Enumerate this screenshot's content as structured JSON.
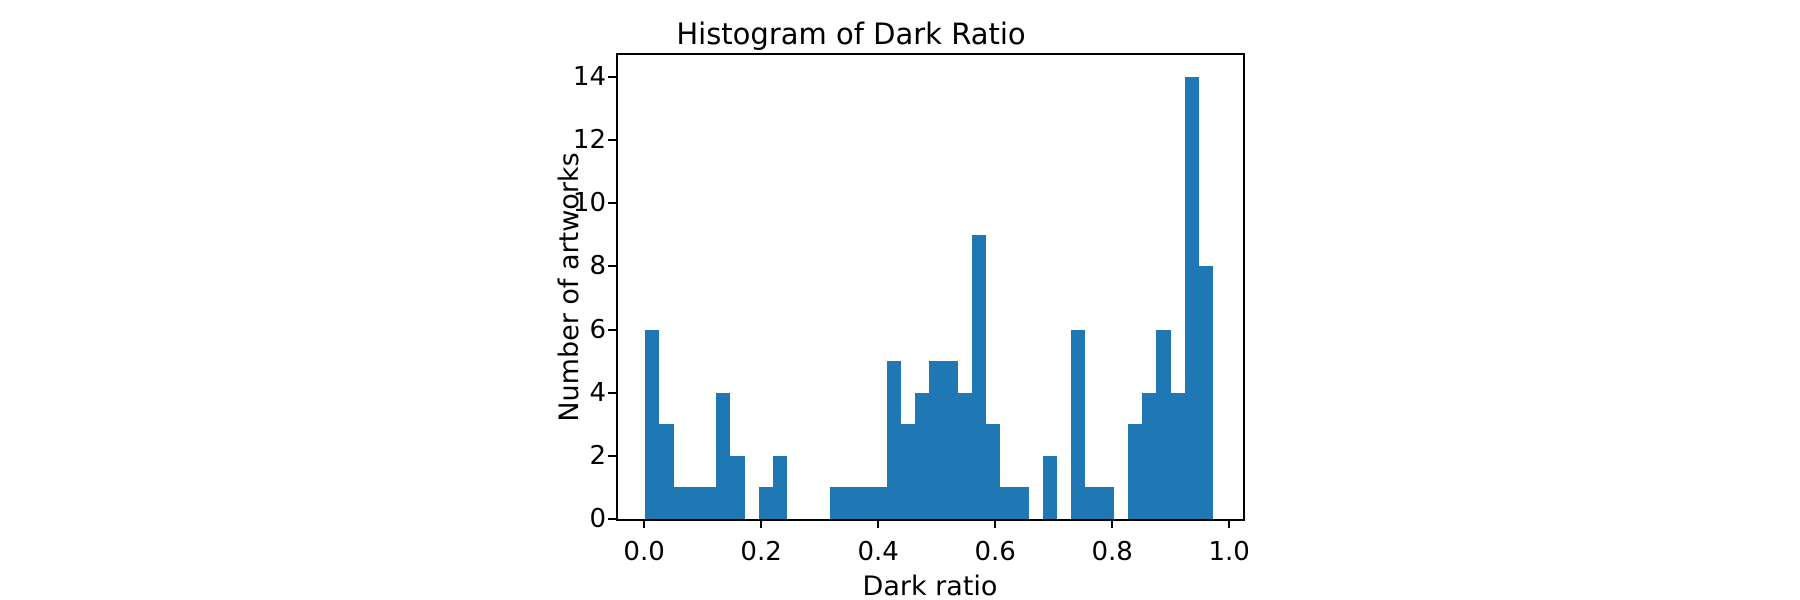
{
  "chart_data": {
    "type": "bar",
    "subtype": "histogram",
    "title": "Histogram of Dark Ratio",
    "xlabel": "Dark ratio",
    "ylabel": "Number of artworks",
    "bar_color": "#1f77b4",
    "bin_start": 0.002,
    "bin_width": 0.02427,
    "counts": [
      6,
      3,
      1,
      1,
      1,
      4,
      2,
      0,
      1,
      2,
      0,
      0,
      0,
      1,
      1,
      1,
      1,
      5,
      3,
      4,
      5,
      5,
      4,
      9,
      3,
      1,
      1,
      0,
      2,
      0,
      6,
      1,
      1,
      0,
      3,
      4,
      6,
      4,
      14,
      8
    ],
    "total_artworks": 114,
    "xlim": [
      -0.0446,
      1.0236
    ],
    "ylim": [
      0,
      14.7
    ],
    "xticks": [
      0.0,
      0.2,
      0.4,
      0.6,
      0.8,
      1.0
    ],
    "xtick_labels": [
      "0.0",
      "0.2",
      "0.4",
      "0.6",
      "0.8",
      "1.0"
    ],
    "yticks": [
      0,
      2,
      4,
      6,
      8,
      10,
      12,
      14
    ],
    "ytick_labels": [
      "0",
      "2",
      "4",
      "6",
      "8",
      "10",
      "12",
      "14"
    ],
    "grid": false,
    "legend": null,
    "background": "#ffffff",
    "axis_color": "#000000"
  }
}
